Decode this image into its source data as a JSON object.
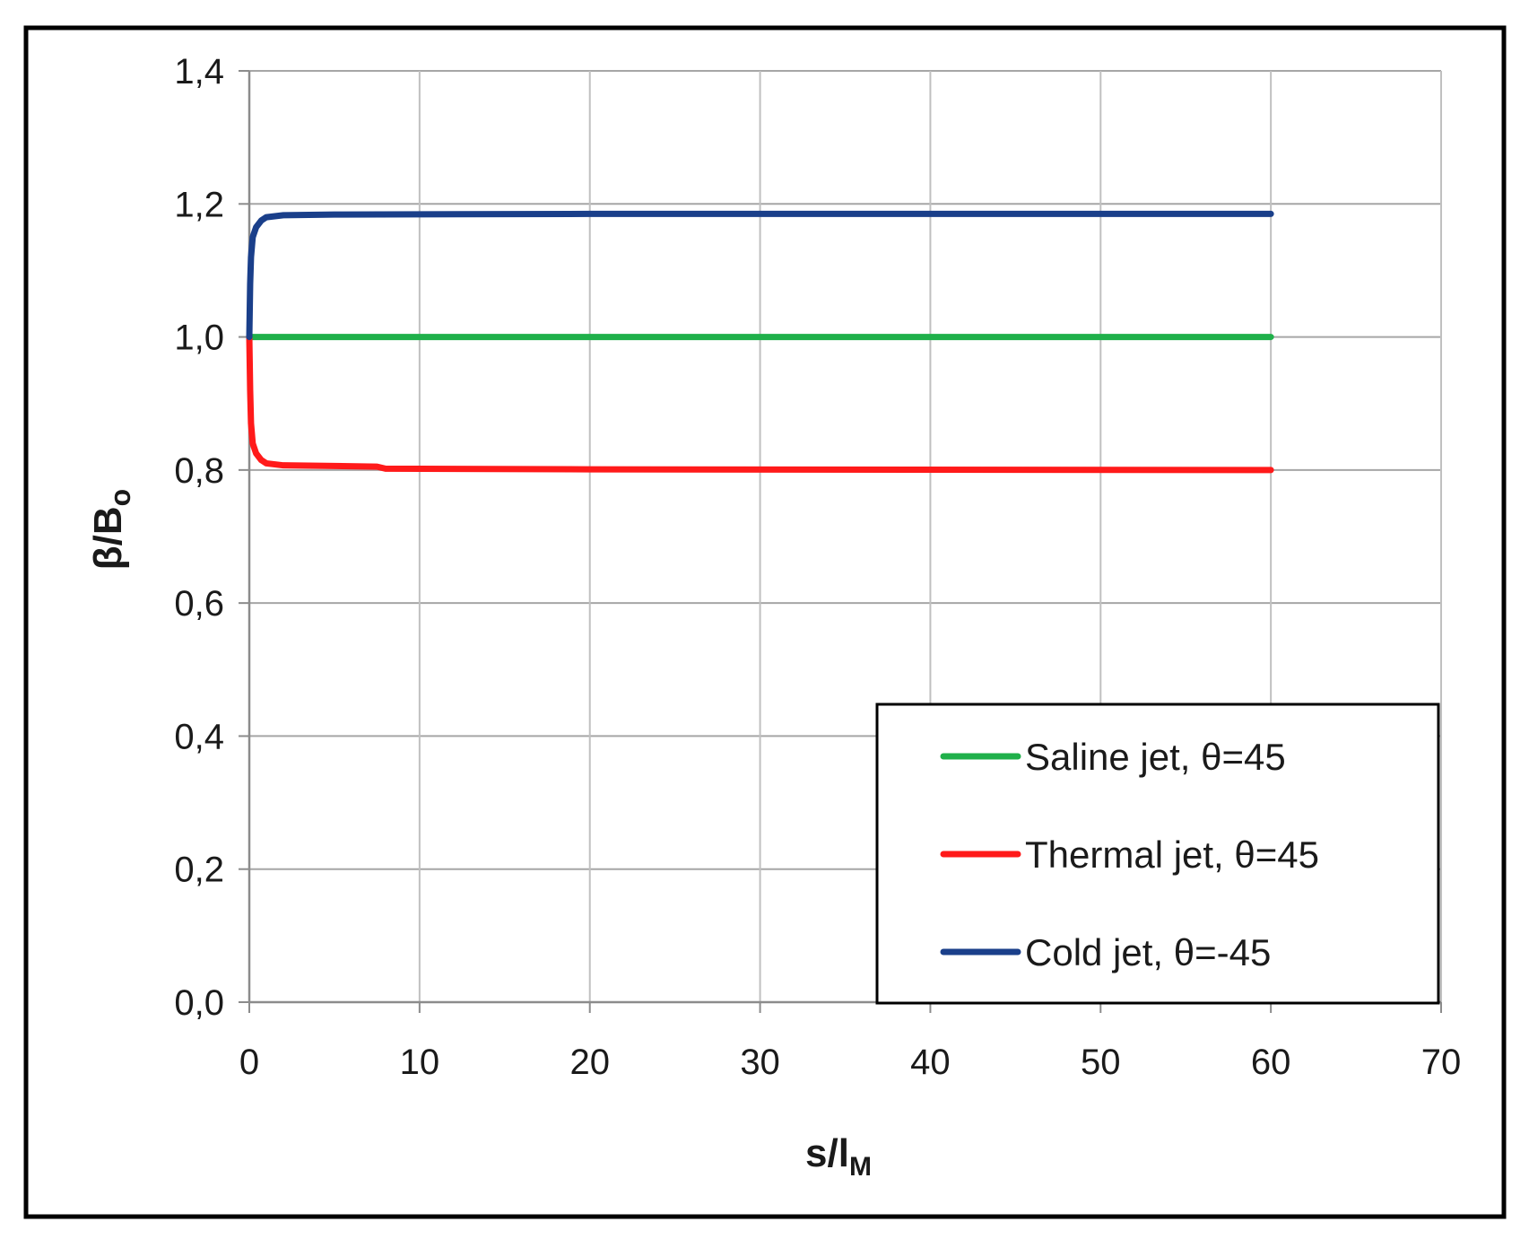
{
  "chart_data": {
    "type": "line",
    "title": "",
    "xlabel": {
      "main": "s/l",
      "sub": "M"
    },
    "ylabel": {
      "main": "β/B",
      "sub": "o"
    },
    "xlim": [
      0,
      70
    ],
    "ylim": [
      0,
      1.4
    ],
    "x_ticks": [
      0,
      10,
      20,
      30,
      40,
      50,
      60,
      70
    ],
    "y_ticks": [
      0,
      0.2,
      0.4,
      0.6,
      0.8,
      1.0,
      1.2,
      1.4
    ],
    "x_tick_labels": [
      "0",
      "10",
      "20",
      "30",
      "40",
      "50",
      "60",
      "70"
    ],
    "y_tick_labels": [
      "0,0",
      "0,2",
      "0,4",
      "0,6",
      "0,8",
      "1,0",
      "1,2",
      "1,4"
    ],
    "grid": true,
    "legend_position": "bottom-right",
    "series": [
      {
        "name": "Saline jet, θ=45",
        "color": "#1fb04a",
        "points": [
          [
            0,
            1.0
          ],
          [
            60,
            1.0
          ]
        ]
      },
      {
        "name": "Thermal jet, θ=45",
        "color": "#ff1a1a",
        "points": [
          [
            0,
            1.0
          ],
          [
            0.05,
            0.92
          ],
          [
            0.1,
            0.87
          ],
          [
            0.2,
            0.84
          ],
          [
            0.4,
            0.825
          ],
          [
            0.7,
            0.815
          ],
          [
            1.0,
            0.81
          ],
          [
            2.0,
            0.807
          ],
          [
            5.0,
            0.806
          ],
          [
            7.5,
            0.805
          ],
          [
            8.0,
            0.802
          ],
          [
            20,
            0.801
          ],
          [
            60,
            0.8
          ]
        ]
      },
      {
        "name": "Cold jet, θ=-45",
        "color": "#1a3f8a",
        "points": [
          [
            0,
            1.0
          ],
          [
            0.05,
            1.08
          ],
          [
            0.1,
            1.12
          ],
          [
            0.2,
            1.15
          ],
          [
            0.4,
            1.165
          ],
          [
            0.7,
            1.175
          ],
          [
            1.0,
            1.18
          ],
          [
            2.0,
            1.183
          ],
          [
            5.0,
            1.184
          ],
          [
            20,
            1.185
          ],
          [
            60,
            1.185
          ]
        ]
      }
    ]
  }
}
